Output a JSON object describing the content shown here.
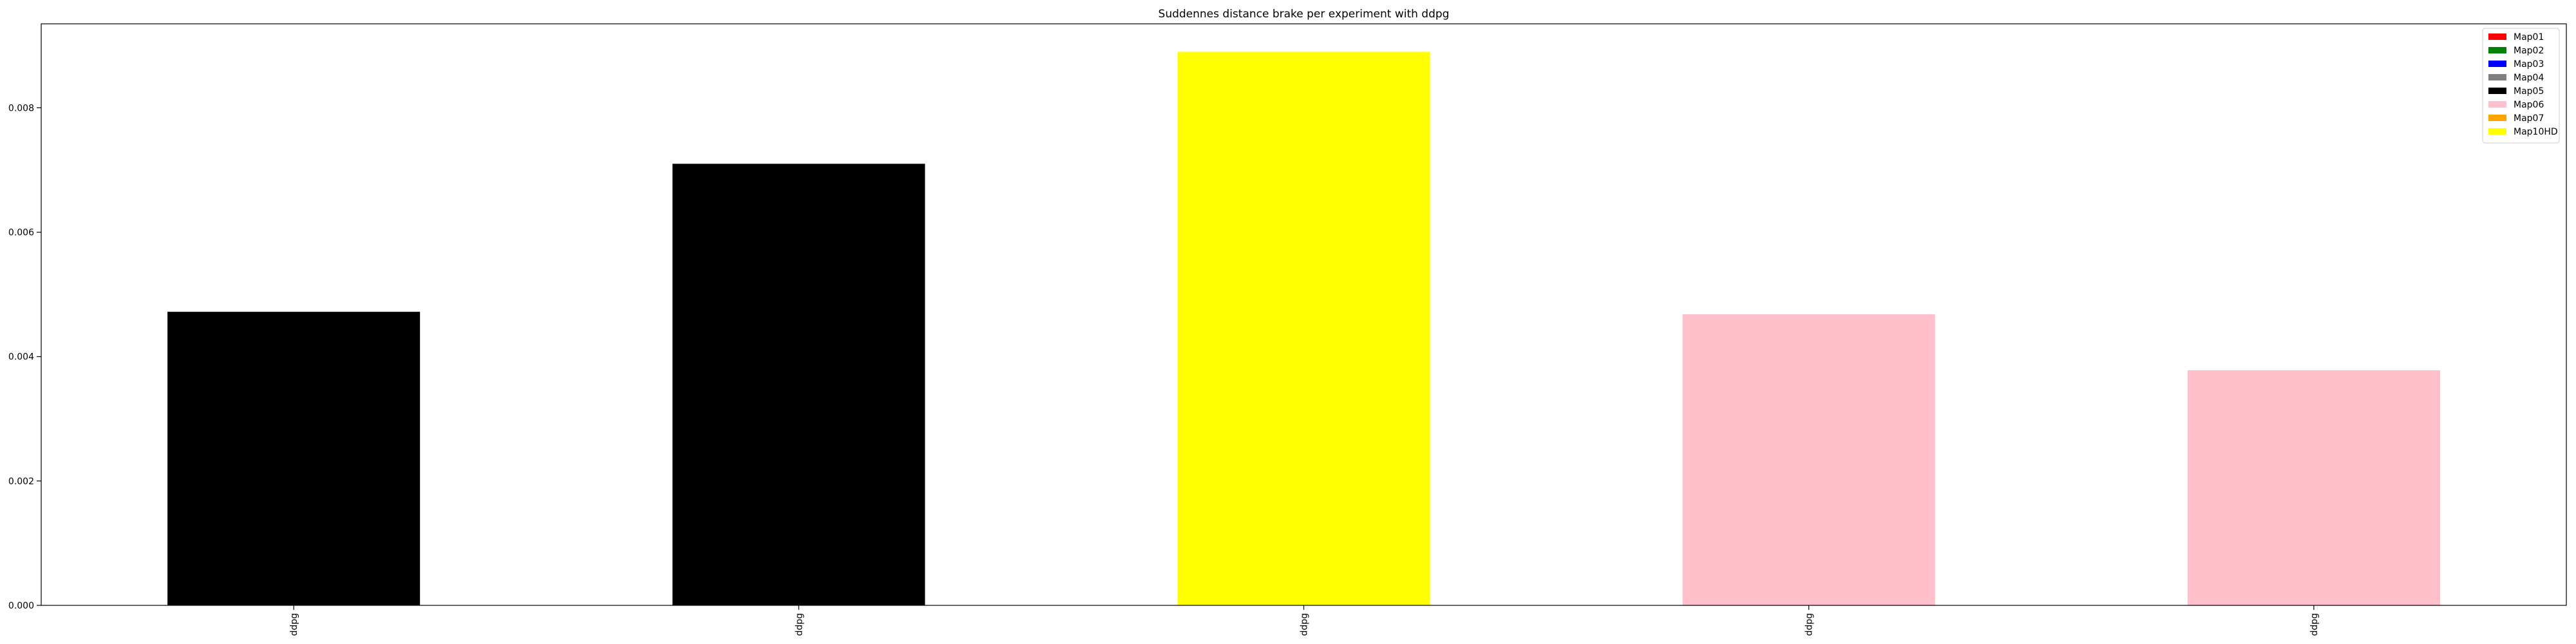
{
  "chart_data": {
    "type": "bar",
    "title": "Suddennes distance brake per experiment with ddpg",
    "xlabel": "",
    "ylabel": "",
    "categories": [
      "ddpg",
      "ddpg",
      "ddpg",
      "ddpg",
      "ddpg"
    ],
    "values": [
      0.00472,
      0.0071,
      0.0089,
      0.00468,
      0.00378
    ],
    "bar_maps": [
      "Map05",
      "Map05",
      "Map10HD",
      "Map06",
      "Map06"
    ],
    "ylim": [
      0,
      0.00935
    ],
    "yticks": [
      0.0,
      0.002,
      0.004,
      0.006,
      0.008
    ],
    "ytick_labels": [
      "0.000",
      "0.002",
      "0.004",
      "0.006",
      "0.008"
    ],
    "grid": false,
    "legend": {
      "placement": "top-right",
      "entries": [
        {
          "name": "Map01",
          "color": "#ff0000"
        },
        {
          "name": "Map02",
          "color": "#008000"
        },
        {
          "name": "Map03",
          "color": "#0000ff"
        },
        {
          "name": "Map04",
          "color": "#808080"
        },
        {
          "name": "Map05",
          "color": "#000000"
        },
        {
          "name": "Map06",
          "color": "#ffc0cb"
        },
        {
          "name": "Map07",
          "color": "#ffa500"
        },
        {
          "name": "Map10HD",
          "color": "#ffff00"
        }
      ]
    }
  }
}
